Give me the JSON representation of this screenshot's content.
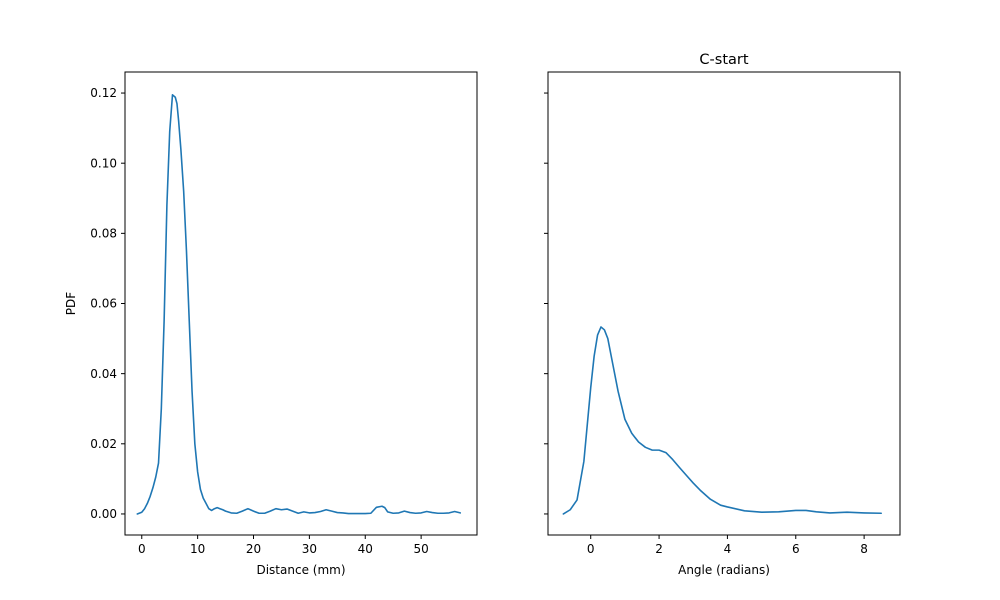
{
  "chart_data": [
    {
      "type": "line",
      "title": "",
      "xlabel": "Distance (mm)",
      "ylabel": "PDF",
      "xlim": [
        -3.0,
        60.0
      ],
      "ylim": [
        -0.006,
        0.126
      ],
      "xticks": [
        0,
        10,
        20,
        30,
        40,
        50
      ],
      "yticks": [
        0.0,
        0.02,
        0.04,
        0.06,
        0.08,
        0.1,
        0.12
      ],
      "ytick_labels": [
        "0.00",
        "0.02",
        "0.04",
        "0.06",
        "0.08",
        "0.10",
        "0.12"
      ],
      "grid": false,
      "series": [
        {
          "color": "#1f77b4",
          "x": [
            -0.8,
            0,
            0.5,
            1,
            1.5,
            2,
            2.5,
            3,
            3.5,
            4,
            4.5,
            5,
            5.5,
            6,
            6.3,
            6.6,
            7,
            7.5,
            8,
            8.5,
            9,
            9.5,
            10,
            10.5,
            11,
            11.5,
            12,
            12.5,
            13,
            13.5,
            14,
            14.5,
            15,
            16,
            17,
            18,
            19,
            20,
            21,
            22,
            23,
            24,
            25,
            26,
            27,
            28,
            29,
            30,
            31,
            32,
            33,
            34,
            35,
            36,
            37,
            38,
            39,
            40,
            41,
            42,
            43,
            43.5,
            44,
            45,
            46,
            47,
            48,
            49,
            50,
            51,
            52,
            53,
            54,
            55,
            56,
            57
          ],
          "y": [
            0.0,
            0.0005,
            0.0015,
            0.003,
            0.005,
            0.0075,
            0.0105,
            0.0145,
            0.03,
            0.055,
            0.088,
            0.109,
            0.1195,
            0.1188,
            0.117,
            0.112,
            0.104,
            0.092,
            0.075,
            0.055,
            0.035,
            0.02,
            0.012,
            0.007,
            0.0045,
            0.003,
            0.0015,
            0.001,
            0.0015,
            0.0018,
            0.0015,
            0.0012,
            0.0008,
            0.0003,
            0.0002,
            0.0008,
            0.0015,
            0.0008,
            0.0002,
            0.0002,
            0.0008,
            0.0015,
            0.0012,
            0.0014,
            0.0008,
            0.0002,
            0.0006,
            0.0003,
            0.0004,
            0.0007,
            0.0012,
            0.0008,
            0.0004,
            0.0003,
            0.0001,
            0.0001,
            0.0001,
            0.0001,
            0.0002,
            0.0019,
            0.0022,
            0.0018,
            0.0006,
            0.0002,
            0.0003,
            0.0008,
            0.0004,
            0.0002,
            0.0003,
            0.0007,
            0.0004,
            0.0002,
            0.0002,
            0.0003,
            0.0007,
            0.0003
          ]
        }
      ]
    },
    {
      "type": "line",
      "title": "C-start",
      "xlabel": "Angle (radians)",
      "ylabel": "",
      "xlim": [
        -1.25,
        9.05
      ],
      "ylim": [
        -0.006,
        0.126
      ],
      "xticks": [
        0,
        2,
        4,
        6,
        8
      ],
      "yticks": [
        0.0,
        0.02,
        0.04,
        0.06,
        0.08,
        0.1,
        0.12
      ],
      "ytick_labels_visible": false,
      "grid": false,
      "series": [
        {
          "color": "#1f77b4",
          "x": [
            -0.8,
            -0.6,
            -0.4,
            -0.2,
            0,
            0.1,
            0.2,
            0.3,
            0.4,
            0.5,
            0.6,
            0.8,
            1.0,
            1.2,
            1.4,
            1.6,
            1.8,
            2.0,
            2.2,
            2.4,
            2.6,
            2.8,
            3.0,
            3.2,
            3.5,
            3.8,
            4.0,
            4.5,
            5.0,
            5.5,
            6.0,
            6.3,
            6.6,
            7.0,
            7.5,
            8.0,
            8.5
          ],
          "y": [
            0.0,
            0.0012,
            0.004,
            0.015,
            0.036,
            0.045,
            0.051,
            0.0533,
            0.0525,
            0.05,
            0.045,
            0.035,
            0.027,
            0.023,
            0.0205,
            0.019,
            0.0182,
            0.0182,
            0.0175,
            0.0155,
            0.0132,
            0.011,
            0.0088,
            0.0068,
            0.0042,
            0.0025,
            0.002,
            0.0009,
            0.0005,
            0.0006,
            0.001,
            0.001,
            0.0006,
            0.0003,
            0.0005,
            0.0003,
            0.0002
          ]
        }
      ]
    }
  ]
}
